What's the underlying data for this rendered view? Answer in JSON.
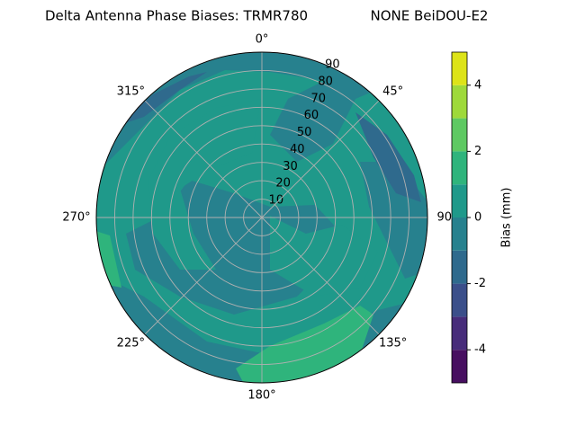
{
  "chart_data": {
    "type": "polar_contour",
    "title": "Delta Antenna Phase Biases: TRMR780",
    "subtitle": "NONE BeiDOU-E2",
    "rlim": [
      0,
      90
    ],
    "rticks": [
      10,
      20,
      30,
      40,
      50,
      60,
      70,
      80,
      90
    ],
    "thetaticks": [
      {
        "value": 0,
        "label": "0°"
      },
      {
        "value": 45,
        "label": "45°"
      },
      {
        "value": 90,
        "label": "90°"
      },
      {
        "value": 135,
        "label": "135°"
      },
      {
        "value": 180,
        "label": "180°"
      },
      {
        "value": 225,
        "label": "225°"
      },
      {
        "value": 270,
        "label": "270°"
      },
      {
        "value": 315,
        "label": "315°"
      }
    ],
    "grid": true,
    "colorbar_label": "Bias (mm)",
    "clim": [
      -5,
      5
    ],
    "cticks": [
      -4,
      -2,
      0,
      2,
      4
    ],
    "levels": [
      -5,
      -4,
      -3,
      -2,
      -1,
      0,
      1,
      2,
      3,
      4,
      5
    ],
    "level_colors": [
      "#470f60",
      "#472c7a",
      "#3b4f8a",
      "#2f6a8d",
      "#27818e",
      "#1f998a",
      "#2fb47c",
      "#5ec962",
      "#9ed93a",
      "#dde318"
    ]
  }
}
